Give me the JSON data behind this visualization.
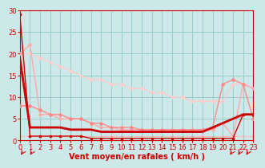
{
  "background_color": "#cce8e8",
  "grid_color": "#99cccc",
  "xlabel": "Vent moyen/en rafales ( km/h )",
  "xlabel_color": "#cc0000",
  "xlabel_fontsize": 7,
  "tick_color": "#cc0000",
  "tick_fontsize": 6,
  "ylim": [
    0,
    30
  ],
  "xlim": [
    0,
    23
  ],
  "yticks": [
    0,
    5,
    10,
    15,
    20,
    25,
    30
  ],
  "xticks": [
    0,
    1,
    2,
    3,
    4,
    5,
    6,
    7,
    8,
    9,
    10,
    11,
    12,
    13,
    14,
    15,
    16,
    17,
    18,
    19,
    20,
    21,
    22,
    23
  ],
  "series": [
    {
      "comment": "dark red line with small square markers - drops fast from 29 to ~1, flat, small rise at end",
      "x": [
        0,
        1,
        2,
        3,
        4,
        5,
        6,
        7,
        8,
        9,
        10,
        11,
        12,
        13,
        14,
        15,
        16,
        17,
        18,
        19,
        20,
        21,
        22,
        23
      ],
      "y": [
        29,
        1,
        1,
        1,
        1,
        1,
        1,
        0.5,
        0.5,
        0.5,
        0.5,
        0.5,
        0.5,
        0.5,
        0.5,
        0.5,
        0.5,
        0.5,
        0.5,
        0.5,
        0.5,
        0.5,
        6,
        6
      ],
      "color": "#cc0000",
      "linewidth": 1.0,
      "marker": "s",
      "markersize": 2.0,
      "zorder": 6
    },
    {
      "comment": "thick dark red line - starts at 19, drops to 3 by x=1, stays ~3, then rises to 5-6 at end",
      "x": [
        0,
        1,
        2,
        3,
        4,
        5,
        6,
        7,
        8,
        9,
        10,
        11,
        12,
        13,
        14,
        15,
        16,
        17,
        18,
        19,
        20,
        21,
        22,
        23
      ],
      "y": [
        19,
        3,
        3,
        3,
        3,
        2.5,
        2.5,
        2.5,
        2,
        2,
        2,
        2,
        2,
        2,
        2,
        2,
        2,
        2,
        2,
        3,
        4,
        5,
        6,
        6
      ],
      "color": "#cc0000",
      "linewidth": 2.0,
      "marker": null,
      "markersize": 0,
      "zorder": 5
    },
    {
      "comment": "medium pink with diamond markers - 8 at x=1, drops to ~2, rises at x=20-21 to 13-14, back to 5",
      "x": [
        0,
        1,
        2,
        3,
        4,
        5,
        6,
        7,
        8,
        9,
        10,
        11,
        12,
        13,
        14,
        15,
        16,
        17,
        18,
        19,
        20,
        21,
        22,
        23
      ],
      "y": [
        8,
        8,
        7,
        6,
        6,
        5,
        5,
        4,
        4,
        3,
        3,
        3,
        2.5,
        2.5,
        2.5,
        2.5,
        2.5,
        2.5,
        2.5,
        3,
        13,
        14,
        13,
        5
      ],
      "color": "#ff8888",
      "linewidth": 1.0,
      "marker": "D",
      "markersize": 2.0,
      "zorder": 4
    },
    {
      "comment": "light pink dashed-like with diamond - starts high at 22 at x=1, drops, then rises at 20-22",
      "x": [
        0,
        1,
        2,
        3,
        4,
        5,
        6,
        7,
        8,
        9,
        10,
        11,
        12,
        13,
        14,
        15,
        16,
        17,
        18,
        19,
        20,
        21,
        22,
        23
      ],
      "y": [
        20,
        22,
        6,
        6,
        5,
        5,
        5,
        4,
        3,
        3,
        2.5,
        2.5,
        2.5,
        2.5,
        2.5,
        2.5,
        2.5,
        2.5,
        2.5,
        2.5,
        4,
        1,
        13,
        12
      ],
      "color": "#ffaaaa",
      "linewidth": 1.0,
      "marker": "D",
      "markersize": 1.8,
      "zorder": 3
    },
    {
      "comment": "lightest pink - very gradual decline from 20 to 13, then up at x=21",
      "x": [
        0,
        1,
        2,
        3,
        4,
        5,
        6,
        7,
        8,
        9,
        10,
        11,
        12,
        13,
        14,
        15,
        16,
        17,
        18,
        19,
        20,
        21,
        22,
        23
      ],
      "y": [
        20,
        20,
        19,
        18,
        17,
        16,
        15,
        14,
        14,
        13,
        13,
        12,
        12,
        11,
        11,
        10,
        10,
        9,
        9,
        9,
        9,
        13,
        13,
        12
      ],
      "color": "#ffcccc",
      "linewidth": 1.0,
      "marker": "D",
      "markersize": 1.8,
      "zorder": 2
    },
    {
      "comment": "extra pink line near bottom ~1 with markers, very flat",
      "x": [
        0,
        1,
        2,
        3,
        4,
        5,
        6,
        7,
        8,
        9,
        10,
        11,
        12,
        13,
        14,
        15,
        16,
        17,
        18,
        19,
        20,
        21,
        22,
        23
      ],
      "y": [
        1,
        1,
        1,
        1,
        1,
        1,
        1,
        1,
        1,
        1,
        1,
        1,
        1,
        1,
        1,
        1,
        1,
        1,
        1,
        1,
        1,
        1,
        1,
        1
      ],
      "color": "#ffbbbb",
      "linewidth": 0.8,
      "marker": "D",
      "markersize": 1.5,
      "zorder": 1
    }
  ]
}
